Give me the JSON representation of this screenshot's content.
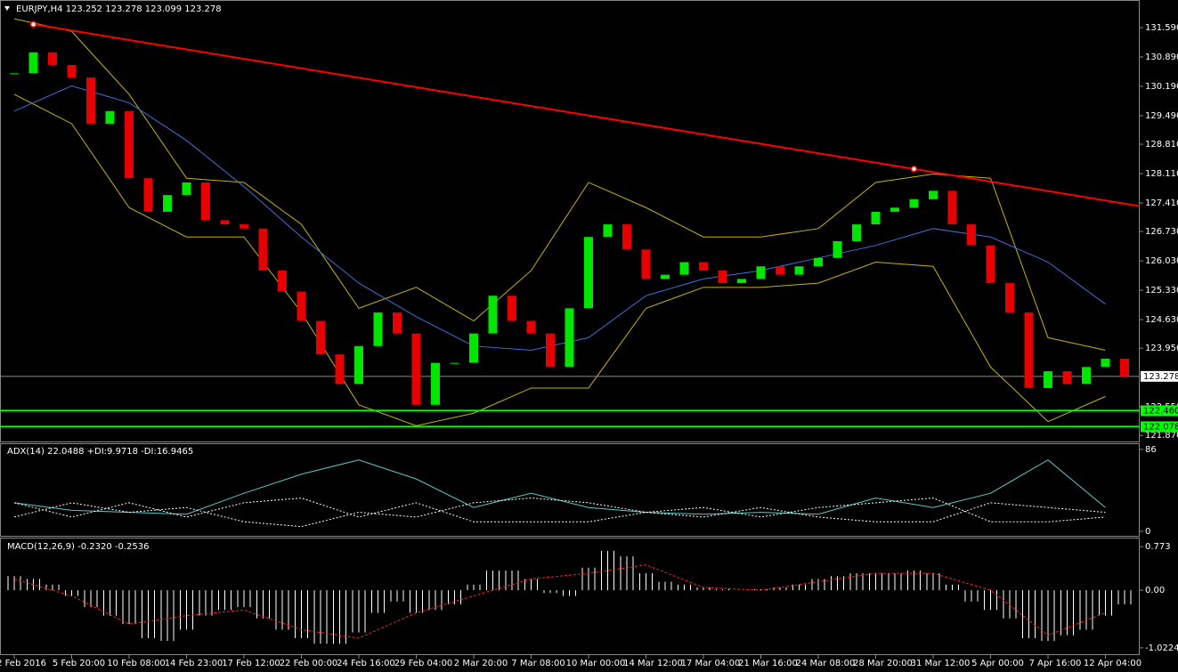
{
  "chart_data": {
    "type": "candlestick",
    "title": "EURJPY,H4  123.252 123.278 123.099 123.278",
    "categories": [
      "2 Feb 2016",
      null,
      null,
      "5 Feb 20:00",
      null,
      null,
      "10 Feb 08:00",
      null,
      null,
      "14 Feb 23:00",
      null,
      null,
      "17 Feb 12:00",
      null,
      null,
      "22 Feb 00:00",
      null,
      null,
      "24 Feb 16:00",
      null,
      null,
      "29 Feb 04:00",
      null,
      null,
      "2 Mar 20:00",
      null,
      null,
      "7 Mar 08:00",
      null,
      null,
      "10 Mar 00:00",
      null,
      null,
      "14 Mar 12:00",
      null,
      null,
      "17 Mar 04:00",
      null,
      null,
      "21 Mar 16:00",
      null,
      null,
      "24 Mar 08:00",
      null,
      null,
      "28 Mar 20:00",
      null,
      null,
      "31 Mar 12:00",
      null,
      null,
      "5 Apr 00:00",
      null,
      null,
      "7 Apr 16:00",
      null,
      null,
      "12 Apr 04:00",
      null
    ],
    "close": [
      130.5,
      131.0,
      130.7,
      130.4,
      129.3,
      129.6,
      128.0,
      127.2,
      127.6,
      127.9,
      127.0,
      126.9,
      126.8,
      125.8,
      125.3,
      124.6,
      123.8,
      123.1,
      124.0,
      124.8,
      124.3,
      122.6,
      123.6,
      123.6,
      124.3,
      125.2,
      124.6,
      124.3,
      123.5,
      124.9,
      126.6,
      126.9,
      126.3,
      125.6,
      125.7,
      126.0,
      125.8,
      125.5,
      125.6,
      125.9,
      125.7,
      125.9,
      126.1,
      126.5,
      126.9,
      127.2,
      127.3,
      127.5,
      127.7,
      126.9,
      126.4,
      125.5,
      124.8,
      123.0,
      123.4,
      123.1,
      123.5,
      123.7,
      123.278
    ],
    "up_color": "#00e600",
    "down_color": "#e60000",
    "ylim": [
      121.705,
      132.248
    ],
    "yticks": [
      {
        "value": 131.59,
        "label": "131.590"
      },
      {
        "value": 130.89,
        "label": "130.890"
      },
      {
        "value": 130.19,
        "label": "130.190"
      },
      {
        "value": 129.49,
        "label": "129.490"
      },
      {
        "value": 128.81,
        "label": "128.810"
      },
      {
        "value": 128.11,
        "label": "128.110"
      },
      {
        "value": 127.41,
        "label": "127.410"
      },
      {
        "value": 126.73,
        "label": "126.730"
      },
      {
        "value": 126.03,
        "label": "126.030"
      },
      {
        "value": 125.33,
        "label": "125.330"
      },
      {
        "value": 124.63,
        "label": "124.630"
      },
      {
        "value": 123.95,
        "label": "123.950"
      },
      {
        "value": 122.55,
        "label": "122.550"
      },
      {
        "value": 121.87,
        "label": "121.870"
      }
    ],
    "current_price": 123.278,
    "levels": [
      {
        "value": 122.46,
        "label": "122.460"
      },
      {
        "value": 122.078,
        "label": "122.078"
      }
    ],
    "level_color": "#00ff00",
    "trendline": {
      "x": [
        1,
        47
      ],
      "values": [
        131.67,
        128.22
      ],
      "color": "#ff0000"
    },
    "ma": {
      "x": [
        0,
        3,
        6,
        9,
        12,
        15,
        18,
        21,
        24,
        27,
        30,
        33,
        36,
        39,
        42,
        45,
        48,
        51,
        54,
        57
      ],
      "values": [
        129.6,
        130.2,
        129.8,
        128.9,
        127.8,
        126.6,
        125.5,
        124.7,
        124.0,
        123.9,
        124.2,
        125.2,
        125.6,
        125.8,
        126.1,
        126.4,
        126.8,
        126.6,
        126.0,
        125.0
      ],
      "color": "#3f6fd8"
    },
    "bands": {
      "x": [
        0,
        3,
        6,
        9,
        12,
        15,
        18,
        21,
        24,
        27,
        30,
        33,
        36,
        39,
        42,
        45,
        48,
        51,
        54,
        57
      ],
      "upper": [
        131.8,
        131.5,
        130.0,
        128.0,
        127.9,
        126.9,
        124.9,
        125.4,
        124.6,
        125.8,
        127.9,
        127.3,
        126.6,
        126.6,
        126.8,
        127.9,
        128.1,
        128.0,
        124.2,
        123.9
      ],
      "lower": [
        130.0,
        129.3,
        127.3,
        126.6,
        126.6,
        124.8,
        122.6,
        122.1,
        122.4,
        123.0,
        123.0,
        124.9,
        125.4,
        125.4,
        125.5,
        126.0,
        125.9,
        123.5,
        122.2,
        122.8
      ],
      "color": "#c8b400"
    },
    "adx": {
      "title": "ADX(14) 22.0488 +DI:9.9718 -DI:16.9465",
      "ylim": [
        -4.7,
        92.5
      ],
      "yticks": [
        86,
        0
      ],
      "x": [
        0,
        3,
        6,
        9,
        12,
        15,
        18,
        21,
        24,
        27,
        30,
        33,
        36,
        39,
        42,
        45,
        48,
        51,
        54,
        57
      ],
      "adx": [
        30,
        22,
        20,
        18,
        40,
        60,
        75,
        55,
        25,
        40,
        25,
        20,
        18,
        20,
        18,
        35,
        25,
        40,
        75,
        25
      ],
      "adx_color": "#5fc8c8",
      "plus_di": [
        15,
        30,
        20,
        25,
        10,
        5,
        20,
        15,
        30,
        35,
        30,
        20,
        25,
        15,
        25,
        30,
        35,
        10,
        10,
        15
      ],
      "minus_di": [
        30,
        15,
        30,
        15,
        30,
        35,
        15,
        30,
        10,
        10,
        10,
        20,
        15,
        25,
        15,
        10,
        10,
        30,
        25,
        20
      ],
      "di_color": "#ffffff"
    },
    "macd": {
      "title": "MACD(12,26,9) -0.2320 -0.2536",
      "ylim": [
        -1.135,
        0.934
      ],
      "yticks": [
        0.773,
        {
          "value": 0,
          "label": "0.00"
        },
        -1.0224
      ],
      "histogram": [
        0.25,
        0.2,
        0.1,
        -0.1,
        -0.3,
        -0.45,
        -0.6,
        -0.85,
        -0.9,
        -0.7,
        -0.45,
        -0.35,
        -0.3,
        -0.5,
        -0.7,
        -0.85,
        -0.95,
        -0.95,
        -0.75,
        -0.4,
        -0.2,
        -0.4,
        -0.35,
        -0.25,
        0.1,
        0.35,
        0.35,
        0.2,
        -0.05,
        -0.1,
        0.4,
        0.7,
        0.6,
        0.3,
        0.15,
        0.1,
        0.05,
        0.02,
        0.0,
        0.02,
        0.05,
        0.1,
        0.2,
        0.25,
        0.3,
        0.3,
        0.3,
        0.35,
        0.3,
        0.1,
        -0.2,
        -0.35,
        -0.5,
        -0.85,
        -0.9,
        -0.8,
        -0.7,
        -0.45,
        -0.25
      ],
      "histogram_color": "#ffffff",
      "x": [
        0,
        3,
        6,
        9,
        12,
        15,
        18,
        21,
        24,
        27,
        30,
        33,
        36,
        39,
        42,
        45,
        48,
        51,
        54,
        57
      ],
      "signal": [
        0.2,
        -0.1,
        -0.6,
        -0.45,
        -0.35,
        -0.7,
        -0.85,
        -0.4,
        -0.1,
        0.2,
        0.3,
        0.45,
        0.05,
        0.0,
        0.15,
        0.3,
        0.3,
        0.0,
        -0.8,
        -0.4
      ],
      "signal_color": "#ff2020"
    }
  }
}
